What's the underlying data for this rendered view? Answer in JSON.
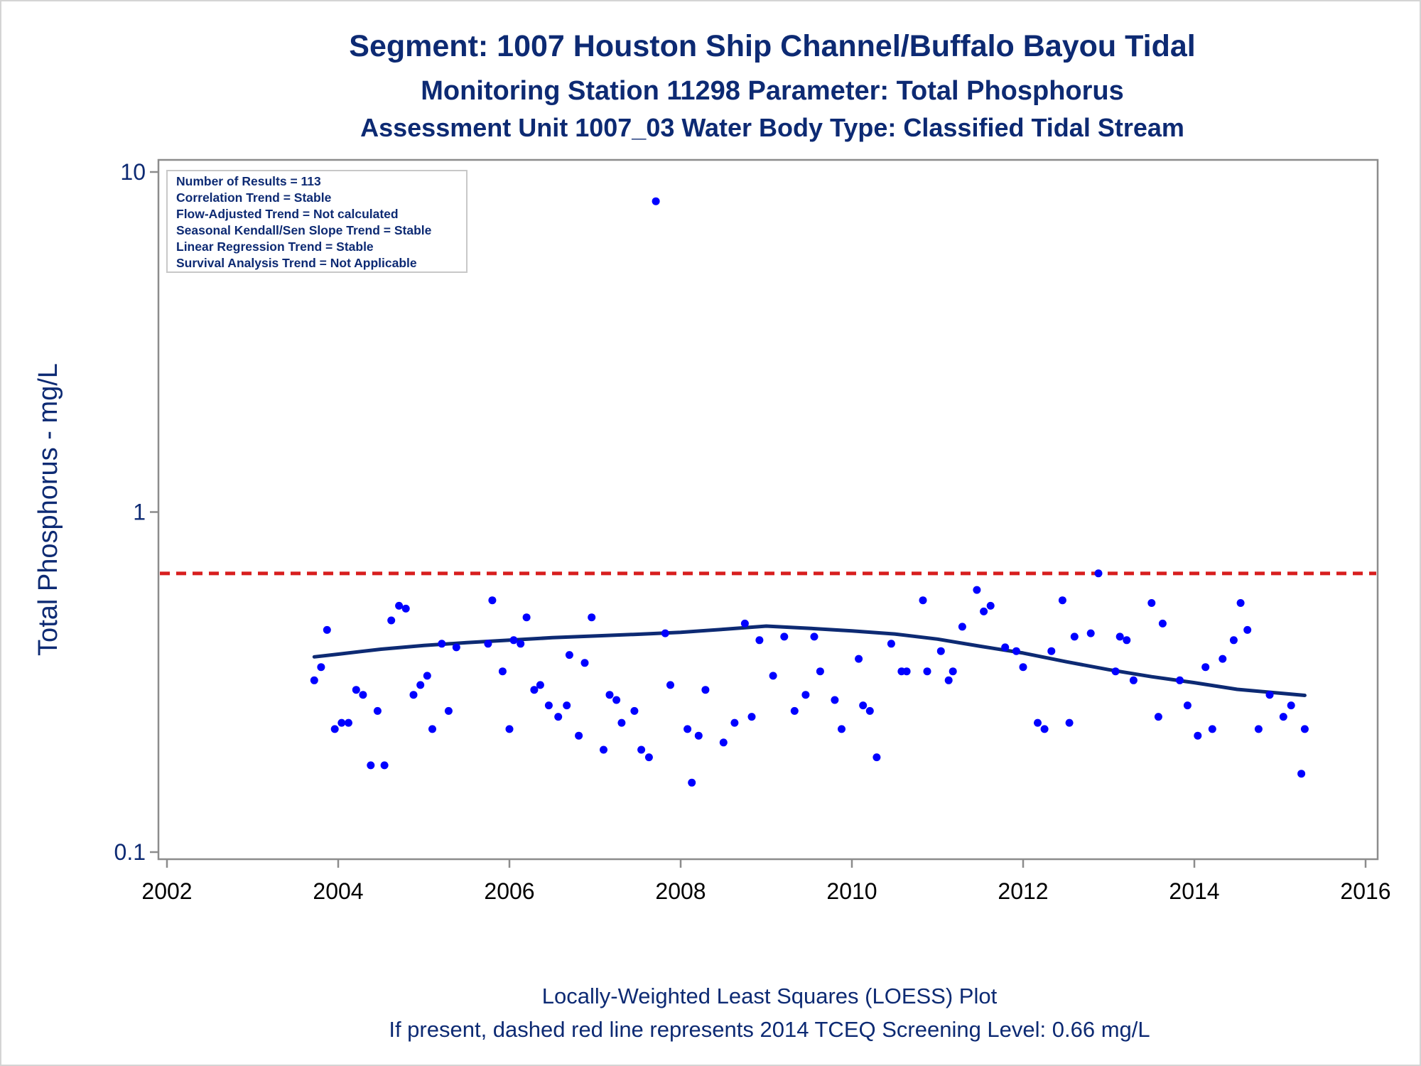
{
  "chart_data": {
    "type": "scatter",
    "title": "Segment: 1007  Houston Ship Channel/Buffalo Bayou Tidal",
    "subtitle": "Monitoring Station 11298 Parameter: Total Phosphorus",
    "subtitle2": "Assessment Unit 1007_03   Water Body Type: Classified Tidal Stream",
    "xlabel": "",
    "ylabel": "Total Phosphorus - mg/L",
    "xlim": [
      2002,
      2016
    ],
    "ylim": [
      0.1,
      10
    ],
    "yscale": "log",
    "xticks": [
      2002,
      2004,
      2006,
      2008,
      2010,
      2012,
      2014,
      2016
    ],
    "xtick_labels": [
      "2002",
      "2004",
      "2006",
      "2008",
      "2010",
      "2012",
      "2014",
      "2016"
    ],
    "yticks": [
      0.1,
      1,
      10
    ],
    "ytick_labels": [
      "0.1",
      "1",
      "10"
    ],
    "grid": false,
    "stats_box": [
      "Number of Results = 113",
      "Correlation Trend = Stable",
      "Flow-Adjusted Trend = Not calculated",
      "Seasonal Kendall/Sen Slope Trend = Stable",
      "Linear Regression Trend = Stable",
      "Survival Analysis Trend = Not Applicable"
    ],
    "stats_box_position": "top-left",
    "screening_level": {
      "value": 0.66,
      "color": "#d81e1e",
      "style": "dashed"
    },
    "footnotes": [
      "Locally-Weighted Least Squares (LOESS) Plot",
      "If present, dashed red line represents 2014 TCEQ Screening Level: 0.66 mg/L"
    ],
    "point_color": "#0000ff",
    "loess_color": "#0d2a73",
    "title_color": "#0d2a73",
    "points": [
      [
        2003.72,
        0.32
      ],
      [
        2003.8,
        0.35
      ],
      [
        2003.87,
        0.45
      ],
      [
        2003.96,
        0.23
      ],
      [
        2004.04,
        0.24
      ],
      [
        2004.12,
        0.24
      ],
      [
        2004.21,
        0.3
      ],
      [
        2004.29,
        0.29
      ],
      [
        2004.38,
        0.18
      ],
      [
        2004.46,
        0.26
      ],
      [
        2004.54,
        0.18
      ],
      [
        2004.62,
        0.48
      ],
      [
        2004.71,
        0.53
      ],
      [
        2004.79,
        0.52
      ],
      [
        2004.88,
        0.29
      ],
      [
        2004.96,
        0.31
      ],
      [
        2005.04,
        0.33
      ],
      [
        2005.1,
        0.23
      ],
      [
        2005.21,
        0.41
      ],
      [
        2005.29,
        0.26
      ],
      [
        2005.38,
        0.4
      ],
      [
        2005.75,
        0.41
      ],
      [
        2005.8,
        0.55
      ],
      [
        2005.92,
        0.34
      ],
      [
        2006.0,
        0.23
      ],
      [
        2006.05,
        0.42
      ],
      [
        2006.13,
        0.41
      ],
      [
        2006.2,
        0.49
      ],
      [
        2006.29,
        0.3
      ],
      [
        2006.36,
        0.31
      ],
      [
        2006.46,
        0.27
      ],
      [
        2006.57,
        0.25
      ],
      [
        2006.67,
        0.27
      ],
      [
        2006.7,
        0.38
      ],
      [
        2006.81,
        0.22
      ],
      [
        2006.88,
        0.36
      ],
      [
        2006.96,
        0.49
      ],
      [
        2007.1,
        0.2
      ],
      [
        2007.17,
        0.29
      ],
      [
        2007.25,
        0.28
      ],
      [
        2007.31,
        0.24
      ],
      [
        2007.46,
        0.26
      ],
      [
        2007.54,
        0.2
      ],
      [
        2007.63,
        0.19
      ],
      [
        2007.71,
        8.2
      ],
      [
        2007.82,
        0.44
      ],
      [
        2007.88,
        0.31
      ],
      [
        2008.08,
        0.23
      ],
      [
        2008.13,
        0.16
      ],
      [
        2008.21,
        0.22
      ],
      [
        2008.29,
        0.3
      ],
      [
        2008.5,
        0.21
      ],
      [
        2008.63,
        0.24
      ],
      [
        2008.75,
        0.47
      ],
      [
        2008.83,
        0.25
      ],
      [
        2008.92,
        0.42
      ],
      [
        2009.08,
        0.33
      ],
      [
        2009.21,
        0.43
      ],
      [
        2009.33,
        0.26
      ],
      [
        2009.46,
        0.29
      ],
      [
        2009.56,
        0.43
      ],
      [
        2009.63,
        0.34
      ],
      [
        2009.8,
        0.28
      ],
      [
        2009.88,
        0.23
      ],
      [
        2010.08,
        0.37
      ],
      [
        2010.13,
        0.27
      ],
      [
        2010.21,
        0.26
      ],
      [
        2010.29,
        0.19
      ],
      [
        2010.46,
        0.41
      ],
      [
        2010.58,
        0.34
      ],
      [
        2010.64,
        0.34
      ],
      [
        2010.83,
        0.55
      ],
      [
        2010.88,
        0.34
      ],
      [
        2011.04,
        0.39
      ],
      [
        2011.13,
        0.32
      ],
      [
        2011.18,
        0.34
      ],
      [
        2011.29,
        0.46
      ],
      [
        2011.46,
        0.59
      ],
      [
        2011.54,
        0.51
      ],
      [
        2011.62,
        0.53
      ],
      [
        2011.79,
        0.4
      ],
      [
        2011.92,
        0.39
      ],
      [
        2012.0,
        0.35
      ],
      [
        2012.17,
        0.24
      ],
      [
        2012.25,
        0.23
      ],
      [
        2012.33,
        0.39
      ],
      [
        2012.46,
        0.55
      ],
      [
        2012.54,
        0.24
      ],
      [
        2012.6,
        0.43
      ],
      [
        2012.79,
        0.44
      ],
      [
        2012.88,
        0.66
      ],
      [
        2013.08,
        0.34
      ],
      [
        2013.13,
        0.43
      ],
      [
        2013.21,
        0.42
      ],
      [
        2013.29,
        0.32
      ],
      [
        2013.5,
        0.54
      ],
      [
        2013.58,
        0.25
      ],
      [
        2013.63,
        0.47
      ],
      [
        2013.83,
        0.32
      ],
      [
        2013.92,
        0.27
      ],
      [
        2014.04,
        0.22
      ],
      [
        2014.13,
        0.35
      ],
      [
        2014.21,
        0.23
      ],
      [
        2014.33,
        0.37
      ],
      [
        2014.46,
        0.42
      ],
      [
        2014.54,
        0.54
      ],
      [
        2014.62,
        0.45
      ],
      [
        2014.75,
        0.23
      ],
      [
        2014.88,
        0.29
      ],
      [
        2015.04,
        0.25
      ],
      [
        2015.13,
        0.27
      ],
      [
        2015.25,
        0.17
      ],
      [
        2015.29,
        0.23
      ]
    ],
    "loess": [
      [
        2003.72,
        0.375
      ],
      [
        2004.0,
        0.382
      ],
      [
        2004.5,
        0.395
      ],
      [
        2005.0,
        0.405
      ],
      [
        2005.5,
        0.413
      ],
      [
        2006.0,
        0.42
      ],
      [
        2006.5,
        0.427
      ],
      [
        2007.0,
        0.432
      ],
      [
        2007.5,
        0.437
      ],
      [
        2008.0,
        0.443
      ],
      [
        2008.5,
        0.452
      ],
      [
        2009.0,
        0.462
      ],
      [
        2009.5,
        0.455
      ],
      [
        2010.0,
        0.447
      ],
      [
        2010.5,
        0.438
      ],
      [
        2011.0,
        0.423
      ],
      [
        2011.5,
        0.403
      ],
      [
        2012.0,
        0.385
      ],
      [
        2012.5,
        0.363
      ],
      [
        2013.0,
        0.344
      ],
      [
        2013.5,
        0.328
      ],
      [
        2014.0,
        0.315
      ],
      [
        2014.5,
        0.301
      ],
      [
        2015.29,
        0.289
      ]
    ]
  }
}
